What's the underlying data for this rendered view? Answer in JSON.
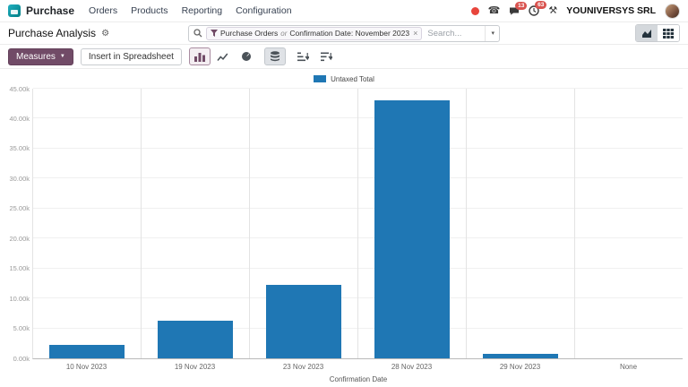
{
  "navbar": {
    "app_name": "Purchase",
    "menus": [
      "Orders",
      "Products",
      "Reporting",
      "Configuration"
    ],
    "systray": {
      "messages_badge": "13",
      "activities_badge": "63",
      "company": "YOUNIVERSYS SRL"
    }
  },
  "icons": {
    "gear": "⚙",
    "caret_down": "▼",
    "caret_small": "▾",
    "close": "×",
    "phone": "☎",
    "tools": "⚒"
  },
  "control_panel": {
    "title": "Purchase Analysis",
    "search": {
      "facet_value_1": "Purchase Orders",
      "facet_separator": "or",
      "facet_value_2": "Confirmation Date: November 2023",
      "placeholder": "Search..."
    }
  },
  "toolbar": {
    "measures_label": "Measures",
    "insert_label": "Insert in Spreadsheet"
  },
  "chart_data": {
    "type": "bar",
    "title": "",
    "legend": [
      "Untaxed Total"
    ],
    "series_color": "#1f77b4",
    "categories": [
      "10 Nov 2023",
      "19 Nov 2023",
      "23 Nov 2023",
      "28 Nov 2023",
      "29 Nov 2023",
      "None"
    ],
    "values": [
      2300,
      6300,
      12300,
      43000,
      700,
      0
    ],
    "xlabel": "Confirmation Date",
    "ylabel": "",
    "ylim": [
      0,
      45000
    ],
    "ytick_step": 5000,
    "ytick_labels": [
      "0.00k",
      "5.00k",
      "10.00k",
      "15.00k",
      "20.00k",
      "25.00k",
      "30.00k",
      "35.00k",
      "40.00k",
      "45.00k"
    ],
    "grid": true,
    "legend_position": "top-center"
  }
}
